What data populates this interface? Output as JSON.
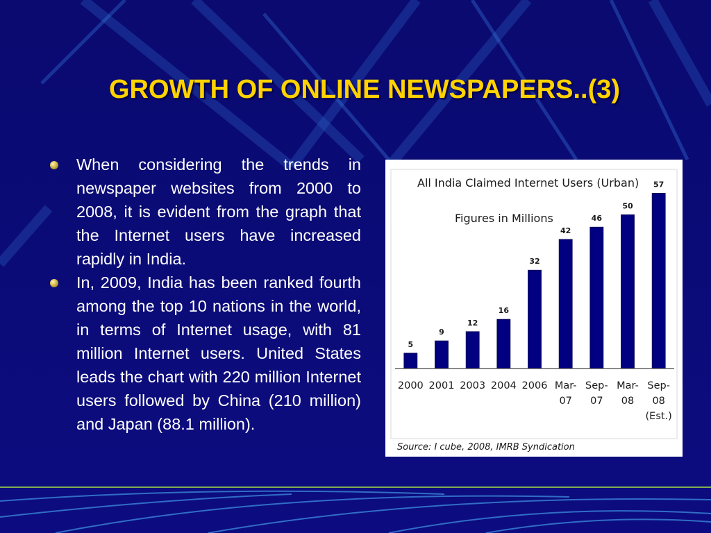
{
  "slide": {
    "title": "GROWTH OF ONLINE NEWSPAPERS..(3)",
    "bullets": [
      "When considering the trends in newspaper websites from 2000 to 2008, it is evident from the graph that the Internet users have increased rapidly in India.",
      "In, 2009, India has been ranked fourth among the top 10 nations in the world, in terms of Internet usage, with 81 million Internet users. United States leads the chart with 220 million Internet users followed by China (210 million) and Japan (88.1 million)."
    ]
  },
  "chart_data": {
    "type": "bar",
    "title": "All India Claimed Internet Users (Urban)",
    "subtitle": "Figures in Millions",
    "source": "Source: I cube, 2008, IMRB Syndication",
    "categories": [
      [
        "2000"
      ],
      [
        "2001"
      ],
      [
        "2003"
      ],
      [
        "2004"
      ],
      [
        "2006"
      ],
      [
        "Mar-",
        "07"
      ],
      [
        "Sep-",
        "07"
      ],
      [
        "Mar-",
        "08"
      ],
      [
        "Sep-",
        "08",
        "(Est.)"
      ]
    ],
    "values": [
      5,
      9,
      12,
      16,
      32,
      42,
      46,
      50,
      57
    ],
    "ylim": [
      0,
      60
    ],
    "grid": false,
    "legend": "none",
    "bar_color": "#000080"
  }
}
